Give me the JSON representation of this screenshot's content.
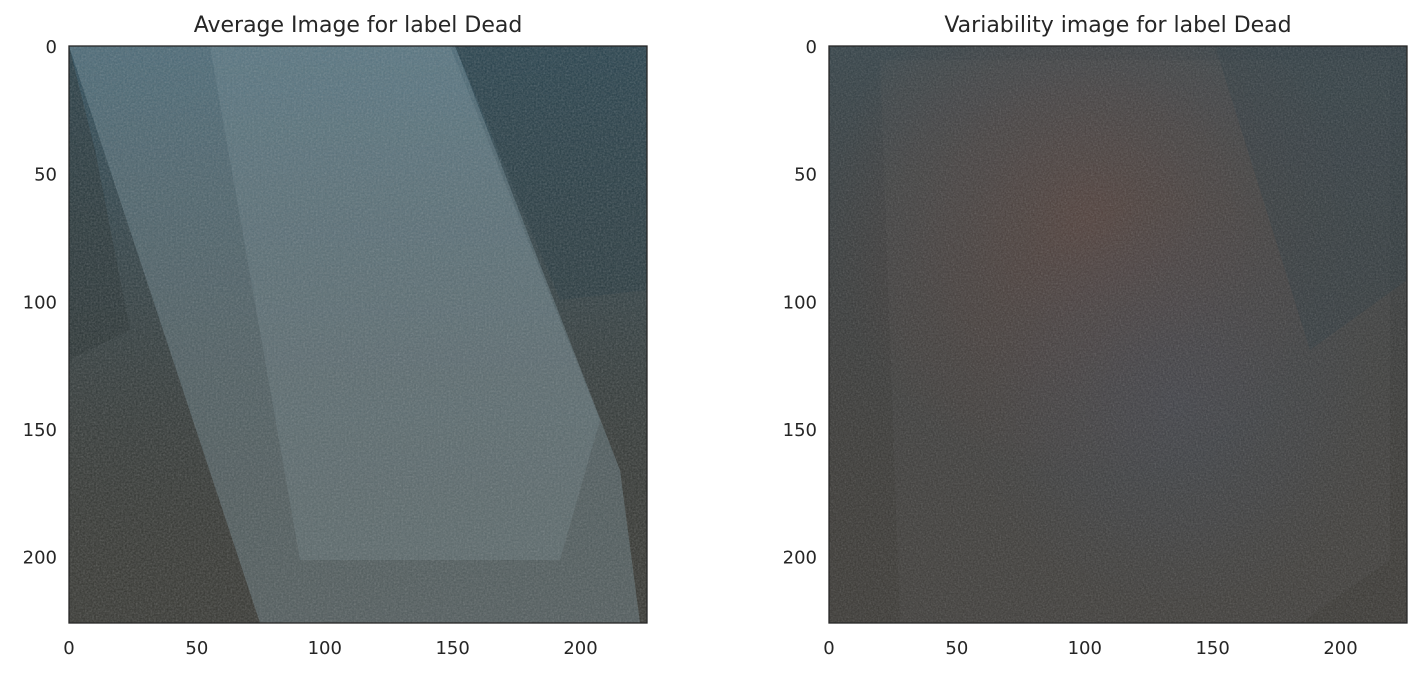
{
  "chart_data": [
    {
      "type": "heatmap",
      "title": "Average Image for label Dead",
      "xlabel": "",
      "ylabel": "",
      "xlim": [
        0,
        226
      ],
      "ylim": [
        226,
        0
      ],
      "x_ticks": [
        0,
        50,
        100,
        150,
        200
      ],
      "y_ticks": [
        0,
        50,
        100,
        150,
        200
      ],
      "grid": false,
      "colors": {
        "base": "#3a3b37",
        "light_wedge": "#7a9aa6",
        "dark_top": "#24434f",
        "accent": "#4a7f95"
      }
    },
    {
      "type": "heatmap",
      "title": "Variability image for label Dead",
      "xlabel": "",
      "ylabel": "",
      "xlim": [
        0,
        226
      ],
      "ylim": [
        226,
        0
      ],
      "x_ticks": [
        0,
        50,
        100,
        150,
        200
      ],
      "y_ticks": [
        0,
        50,
        100,
        150,
        200
      ],
      "grid": false,
      "colors": {
        "base": "#3c3a38",
        "light_wedge": "#4a4a4c",
        "dark_top": "#2e3a40",
        "accent": "#5a3d36"
      }
    }
  ]
}
